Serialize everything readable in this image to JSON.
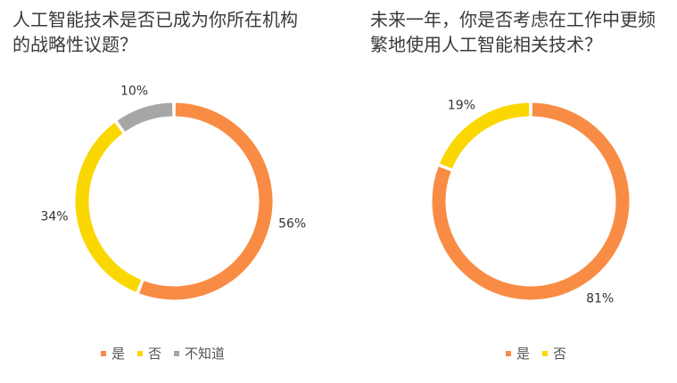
{
  "chart_data": [
    {
      "type": "pie",
      "title": "人工智能技术是否已成为你所在机构的战略性议题？",
      "categories": [
        "是",
        "否",
        "不知道"
      ],
      "values": [
        56,
        34,
        10
      ],
      "labels": [
        "56%",
        "34%",
        "10%"
      ],
      "colors": [
        "#F98C45",
        "#FAD700",
        "#A6A6A6"
      ],
      "legend": "bottom"
    },
    {
      "type": "pie",
      "title": "未来一年，你是否考虑在工作中更频繁地使用人工智能相关技术？",
      "categories": [
        "是",
        "否"
      ],
      "values": [
        81,
        19
      ],
      "labels": [
        "81%",
        "19%"
      ],
      "colors": [
        "#F98C45",
        "#FAD700"
      ],
      "legend": "bottom"
    }
  ]
}
